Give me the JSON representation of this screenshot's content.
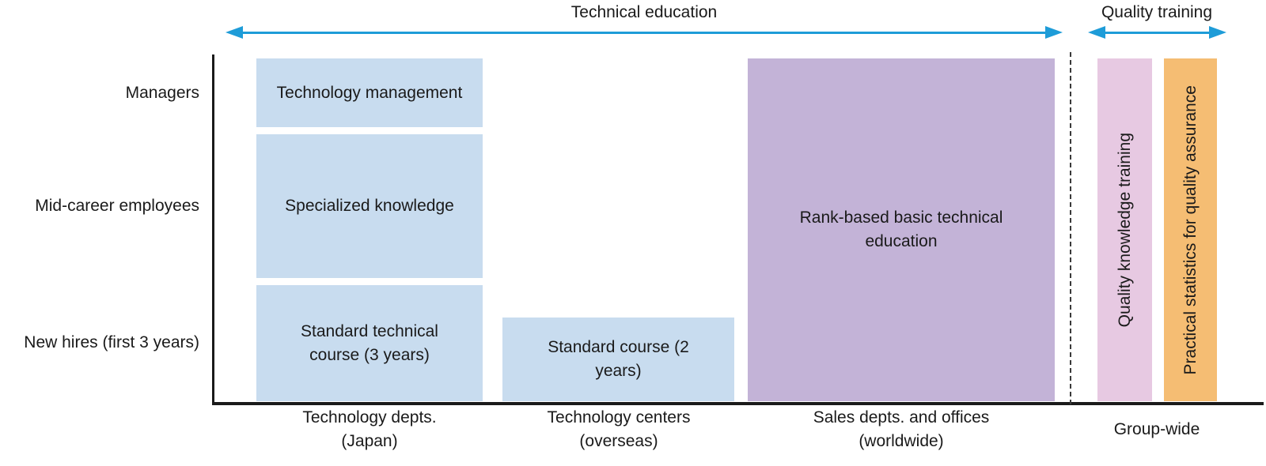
{
  "header": {
    "technical_education_label": "Technical education",
    "quality_training_label": "Quality training"
  },
  "rows": [
    {
      "label": "Managers"
    },
    {
      "label": "Mid-career employees"
    },
    {
      "label": "New hires (first 3 years)"
    }
  ],
  "boxes": {
    "technology_management": "Technology management",
    "specialized_knowledge": "Specialized knowledge",
    "standard_technical_course": "Standard technical course (3 years)",
    "standard_course": "Standard course (2 years)",
    "rank_based_basic": "Rank-based basic technical education",
    "quality_knowledge_training": "Quality knowledge training",
    "practical_statistics": "Practical statistics for quality assurance"
  },
  "columns": [
    {
      "line1": "Technology depts.",
      "line2": "(Japan)"
    },
    {
      "line1": "Technology centers",
      "line2": "(overseas)"
    },
    {
      "line1": "Sales depts. and offices",
      "line2": "(worldwide)"
    },
    {
      "line1": "Group-wide",
      "line2": ""
    }
  ],
  "colors": {
    "light_blue": "#c8dcef",
    "purple": "#c3b3d7",
    "pink": "#e7c9e2",
    "orange": "#f5bd73",
    "arrow_blue": "#1e9cd8",
    "axis": "#1a1a1a"
  }
}
